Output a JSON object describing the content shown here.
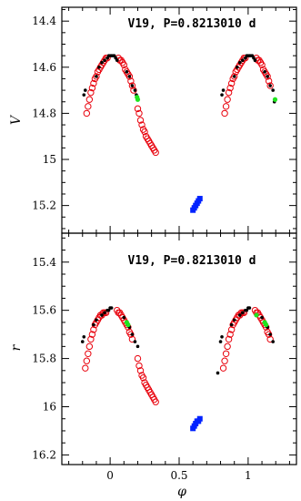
{
  "chart_data": [
    {
      "type": "scatter",
      "title": "V19, P=0.8213010 d",
      "xlabel": "",
      "ylabel": "V",
      "xlim": [
        -0.35,
        1.35
      ],
      "ylim": [
        15.32,
        14.34
      ],
      "y_inverted": true,
      "yticks": [
        {
          "value": 14.4,
          "label": "14.4"
        },
        {
          "value": 14.6,
          "label": "14.6"
        },
        {
          "value": 14.8,
          "label": "14.8"
        },
        {
          "value": 15.0,
          "label": "15"
        },
        {
          "value": 15.2,
          "label": "15.2"
        }
      ],
      "series": [
        {
          "marker": "open-circle",
          "color": "#e8000b",
          "x": [
            -0.17,
            -0.16,
            -0.15,
            -0.14,
            -0.13,
            -0.12,
            -0.11,
            -0.1,
            -0.09,
            -0.08,
            -0.07,
            -0.06,
            -0.05,
            -0.04,
            -0.03,
            -0.02,
            0.06,
            0.07,
            0.08,
            0.09,
            0.1,
            0.11,
            0.12,
            0.13,
            0.14,
            0.15,
            0.16,
            0.17,
            0.2,
            0.21,
            0.22,
            0.23,
            0.24,
            0.25,
            0.26,
            0.27,
            0.28,
            0.29,
            0.3,
            0.31,
            0.32,
            0.33,
            0.83,
            0.84,
            0.85,
            0.86,
            0.87,
            0.88,
            0.89,
            0.9,
            0.91,
            0.92,
            0.93,
            0.94,
            0.95,
            0.96,
            0.97,
            0.98,
            1.06,
            1.07,
            1.08,
            1.09,
            1.1,
            1.11,
            1.12,
            1.13,
            1.14,
            1.15,
            1.16
          ],
          "y": [
            14.8,
            14.77,
            14.74,
            14.71,
            14.69,
            14.67,
            14.65,
            14.64,
            14.62,
            14.61,
            14.6,
            14.59,
            14.58,
            14.57,
            14.56,
            14.56,
            14.56,
            14.57,
            14.57,
            14.58,
            14.59,
            14.61,
            14.62,
            14.63,
            14.64,
            14.66,
            14.68,
            14.7,
            14.78,
            14.8,
            14.83,
            14.85,
            14.87,
            14.88,
            14.9,
            14.91,
            14.92,
            14.93,
            14.94,
            14.95,
            14.96,
            14.97,
            14.8,
            14.77,
            14.74,
            14.71,
            14.69,
            14.67,
            14.65,
            14.64,
            14.62,
            14.61,
            14.6,
            14.59,
            14.58,
            14.57,
            14.56,
            14.56,
            14.56,
            14.57,
            14.57,
            14.58,
            14.59,
            14.61,
            14.62,
            14.63,
            14.64,
            14.66,
            14.68
          ]
        },
        {
          "marker": "dot",
          "color": "#000000",
          "x": [
            -0.19,
            -0.18,
            -0.1,
            -0.08,
            -0.06,
            -0.04,
            -0.02,
            -0.01,
            0,
            0.01,
            0.02,
            0.03,
            0.04,
            0.05,
            0.12,
            0.14,
            0.16,
            0.18,
            0.19,
            0.81,
            0.82,
            0.9,
            0.92,
            0.94,
            0.96,
            0.98,
            0.99,
            1,
            1.01,
            1.02,
            1.03,
            1.04,
            1.05,
            1.12,
            1.14,
            1.16,
            1.18,
            1.19
          ],
          "y": [
            14.72,
            14.7,
            14.64,
            14.6,
            14.58,
            14.57,
            14.56,
            14.55,
            14.55,
            14.55,
            14.55,
            14.55,
            14.56,
            14.57,
            14.62,
            14.64,
            14.68,
            14.7,
            14.72,
            14.72,
            14.7,
            14.64,
            14.6,
            14.58,
            14.57,
            14.56,
            14.55,
            14.55,
            14.55,
            14.55,
            14.55,
            14.56,
            14.57,
            14.62,
            14.64,
            14.68,
            14.7,
            14.75
          ]
        },
        {
          "marker": "dot-large",
          "color": "#1fe51f",
          "x": [
            0.195,
            0.2,
            1.195
          ],
          "y": [
            14.73,
            14.74,
            14.74
          ]
        },
        {
          "marker": "square",
          "color": "#0022ff",
          "x": [
            0.6,
            0.61,
            0.62,
            0.63,
            0.64,
            0.65
          ],
          "y": [
            15.22,
            15.21,
            15.2,
            15.19,
            15.18,
            15.17
          ]
        }
      ]
    },
    {
      "type": "scatter",
      "title": "V19, P=0.8213010 d",
      "xlabel": "φ",
      "ylabel": "r",
      "xlim": [
        -0.35,
        1.35
      ],
      "ylim": [
        16.24,
        15.28
      ],
      "y_inverted": true,
      "xticks": [
        {
          "value": 0,
          "label": "0"
        },
        {
          "value": 0.5,
          "label": "0.5"
        },
        {
          "value": 1,
          "label": "1"
        }
      ],
      "yticks": [
        {
          "value": 15.4,
          "label": "15.4"
        },
        {
          "value": 15.6,
          "label": "15.6"
        },
        {
          "value": 15.8,
          "label": "15.8"
        },
        {
          "value": 16.0,
          "label": "16"
        },
        {
          "value": 16.2,
          "label": "16.2"
        }
      ],
      "series": [
        {
          "marker": "open-circle",
          "color": "#e8000b",
          "x": [
            -0.18,
            -0.17,
            -0.16,
            -0.15,
            -0.14,
            -0.13,
            -0.12,
            -0.11,
            -0.1,
            -0.09,
            -0.08,
            -0.07,
            -0.06,
            -0.05,
            -0.04,
            -0.03,
            0.05,
            0.06,
            0.07,
            0.08,
            0.09,
            0.1,
            0.11,
            0.12,
            0.13,
            0.14,
            0.15,
            0.16,
            0.2,
            0.21,
            0.22,
            0.23,
            0.24,
            0.25,
            0.26,
            0.27,
            0.28,
            0.29,
            0.3,
            0.31,
            0.32,
            0.33,
            0.82,
            0.83,
            0.84,
            0.85,
            0.86,
            0.87,
            0.88,
            0.89,
            0.9,
            0.91,
            0.92,
            0.93,
            0.94,
            0.95,
            0.96,
            0.97,
            1.05,
            1.06,
            1.07,
            1.08,
            1.09,
            1.1,
            1.11,
            1.12,
            1.13,
            1.14,
            1.15,
            1.16
          ],
          "y": [
            15.84,
            15.81,
            15.78,
            15.75,
            15.72,
            15.7,
            15.68,
            15.66,
            15.65,
            15.64,
            15.63,
            15.62,
            15.62,
            15.61,
            15.61,
            15.61,
            15.6,
            15.61,
            15.61,
            15.62,
            15.63,
            15.64,
            15.65,
            15.66,
            15.67,
            15.69,
            15.7,
            15.72,
            15.8,
            15.83,
            15.85,
            15.87,
            15.88,
            15.9,
            15.91,
            15.92,
            15.93,
            15.94,
            15.95,
            15.96,
            15.97,
            15.98,
            15.84,
            15.81,
            15.78,
            15.75,
            15.72,
            15.7,
            15.68,
            15.66,
            15.65,
            15.64,
            15.63,
            15.62,
            15.62,
            15.61,
            15.61,
            15.61,
            15.6,
            15.61,
            15.61,
            15.62,
            15.63,
            15.64,
            15.65,
            15.66,
            15.67,
            15.69,
            15.7,
            15.72
          ]
        },
        {
          "marker": "dot",
          "color": "#000000",
          "x": [
            -0.2,
            -0.19,
            -0.12,
            -0.1,
            -0.06,
            -0.04,
            -0.02,
            -0.01,
            0,
            0.01,
            0.1,
            0.12,
            0.14,
            0.16,
            0.18,
            0.2,
            0.78,
            0.8,
            0.81,
            0.88,
            0.9,
            0.94,
            0.96,
            0.98,
            0.99,
            1,
            1.01,
            1.1,
            1.12,
            1.14,
            1.16,
            1.18
          ],
          "y": [
            15.73,
            15.71,
            15.66,
            15.64,
            15.62,
            15.61,
            15.6,
            15.6,
            15.59,
            15.59,
            15.63,
            15.65,
            15.67,
            15.7,
            15.73,
            15.75,
            15.86,
            15.73,
            15.71,
            15.66,
            15.64,
            15.62,
            15.61,
            15.6,
            15.6,
            15.59,
            15.59,
            15.63,
            15.65,
            15.67,
            15.7,
            15.73
          ]
        },
        {
          "marker": "dot-large",
          "color": "#1fe51f",
          "x": [
            0.12,
            0.13,
            1.06,
            1.12,
            1.13
          ],
          "y": [
            15.65,
            15.66,
            15.62,
            15.65,
            15.66
          ]
        },
        {
          "marker": "square",
          "color": "#0022ff",
          "x": [
            0.6,
            0.61,
            0.62,
            0.63,
            0.64,
            0.65
          ],
          "y": [
            16.09,
            16.08,
            16.07,
            16.06,
            16.06,
            16.05
          ]
        }
      ]
    }
  ]
}
